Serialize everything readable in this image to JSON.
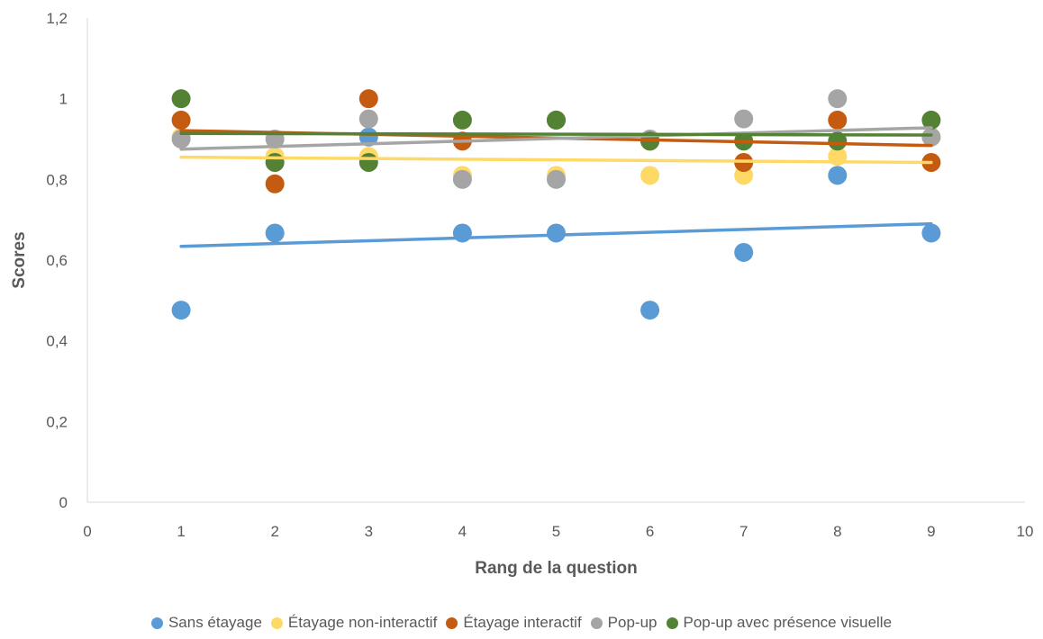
{
  "chart_data": {
    "type": "scatter",
    "title": "",
    "xlabel": "Rang de la question",
    "ylabel": "Scores",
    "xlim": [
      0,
      10
    ],
    "ylim": [
      0,
      1.2
    ],
    "x_ticks": [
      "0",
      "1",
      "2",
      "3",
      "4",
      "5",
      "6",
      "7",
      "8",
      "9",
      "10"
    ],
    "y_ticks": [
      "0",
      "0,2",
      "0,4",
      "0,6",
      "0,8",
      "1",
      "1,2"
    ],
    "grid": false,
    "legend_position": "bottom",
    "trendlines": true,
    "x": [
      1,
      2,
      3,
      4,
      5,
      6,
      7,
      8,
      9
    ],
    "series": [
      {
        "name": "Sans étayage",
        "color": "#5B9BD5",
        "values": [
          0.476,
          0.667,
          0.905,
          0.667,
          0.667,
          0.476,
          0.619,
          0.81,
          0.667
        ],
        "trend": [
          0.634,
          0.69
        ]
      },
      {
        "name": "Étayage non-interactif",
        "color": "#FFD966",
        "values": [
          0.905,
          0.857,
          0.857,
          0.81,
          0.81,
          0.81,
          0.81,
          0.857,
          0.905
        ],
        "trend": [
          0.855,
          0.842
        ]
      },
      {
        "name": "Étayage interactif",
        "color": "#C55A11",
        "values": [
          0.947,
          0.789,
          1.0,
          0.895,
          0.947,
          0.895,
          0.842,
          0.947,
          0.842
        ],
        "trend": [
          0.921,
          0.884
        ]
      },
      {
        "name": "Pop-up",
        "color": "#A5A5A5",
        "values": [
          0.9,
          0.9,
          0.95,
          0.8,
          0.8,
          0.9,
          0.95,
          1.0,
          0.905
        ],
        "trend": [
          0.875,
          0.928
        ]
      },
      {
        "name": "Pop-up avec présence visuelle",
        "color": "#548235",
        "values": [
          1.0,
          0.842,
          0.842,
          0.947,
          0.947,
          0.895,
          0.895,
          0.895,
          0.947
        ],
        "trend": [
          0.914,
          0.91
        ]
      }
    ]
  }
}
